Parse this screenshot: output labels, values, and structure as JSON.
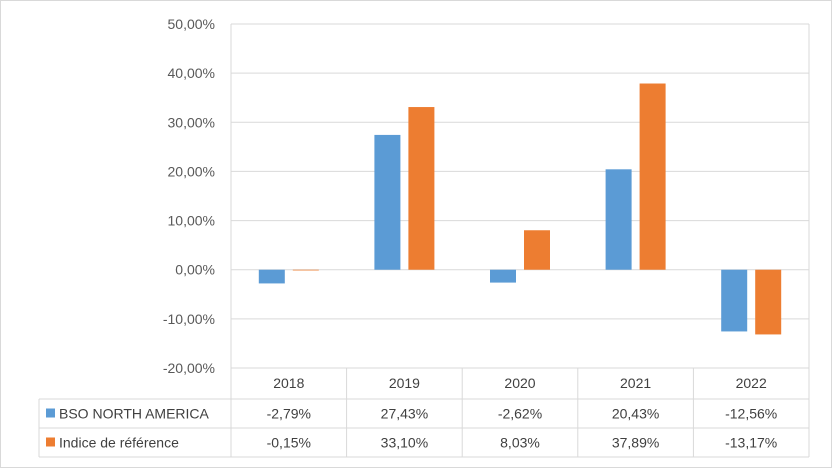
{
  "chart_data": {
    "type": "bar",
    "title": "",
    "xlabel": "",
    "ylabel": "",
    "categories": [
      "2018",
      "2019",
      "2020",
      "2021",
      "2022"
    ],
    "series": [
      {
        "name": "BSO NORTH AMERICA",
        "color": "#5b9bd5",
        "values": [
          -2.79,
          27.43,
          -2.62,
          20.43,
          -12.56
        ],
        "labels": [
          "-2,79%",
          "27,43%",
          "-2,62%",
          "20,43%",
          "-12,56%"
        ]
      },
      {
        "name": "Indice de référence",
        "color": "#ed7d31",
        "values": [
          -0.15,
          33.1,
          8.03,
          37.89,
          -13.17
        ],
        "labels": [
          "-0,15%",
          "33,10%",
          "8,03%",
          "37,89%",
          "-13,17%"
        ]
      }
    ],
    "ylim": [
      -20,
      50
    ],
    "yticks": [
      50,
      40,
      30,
      20,
      10,
      0,
      -10,
      -20
    ],
    "ytick_labels": [
      "50,00%",
      "40,00%",
      "30,00%",
      "20,00%",
      "10,00%",
      "0,00%",
      "-10,00%",
      "-20,00%"
    ],
    "grid": true,
    "legend": "data-table"
  }
}
